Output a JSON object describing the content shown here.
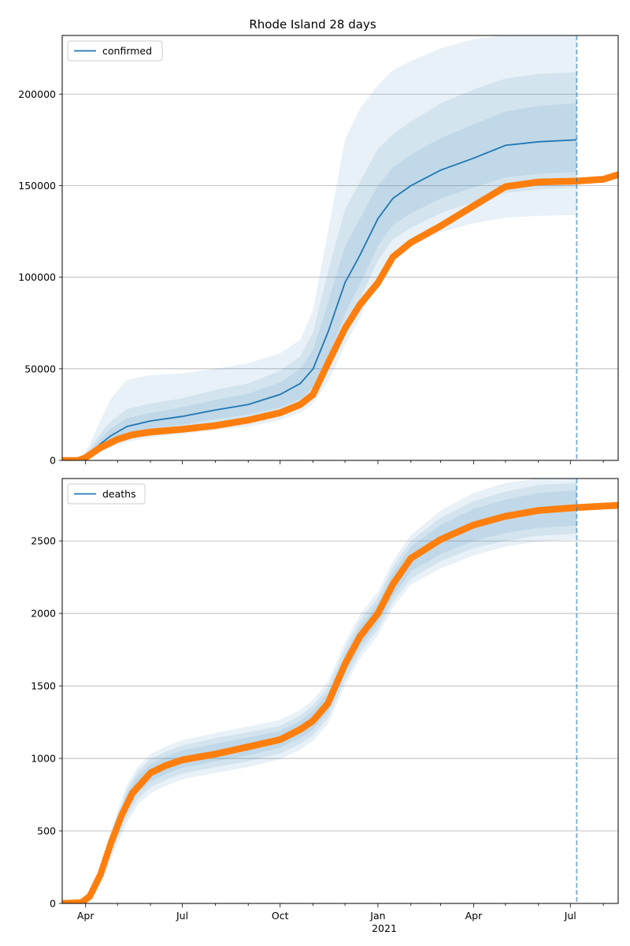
{
  "figure": {
    "title": "Rhode Island 28 days"
  },
  "colors": {
    "model": "#1f77b4",
    "observed": "#ff7f0e",
    "band": "#1f77b4",
    "grid": "#b0b0b0",
    "axis": "#000000"
  },
  "x_axis": {
    "tick_labels": [
      "Apr",
      "Jul",
      "Oct",
      "Jan",
      "Apr",
      "Jul"
    ],
    "secondary_label": "2021",
    "range": [
      "2020-03-10",
      "2021-08-15"
    ]
  },
  "chart_data": [
    {
      "type": "line",
      "panel": "top",
      "title": "Rhode Island 28 days",
      "legend": "confirmed",
      "legend_position": "top-left",
      "grid": "horizontal",
      "ylim": [
        0,
        232000
      ],
      "yticks": [
        "0",
        "50000",
        "100000",
        "150000",
        "200000"
      ],
      "forecast_marker_date": "2021-07-07",
      "model": {
        "name": "confirmed",
        "x": [
          "2020-03-10",
          "2020-03-27",
          "2020-04-05",
          "2020-04-15",
          "2020-04-25",
          "2020-05-10",
          "2020-06-01",
          "2020-07-01",
          "2020-08-01",
          "2020-09-01",
          "2020-10-01",
          "2020-10-20",
          "2020-11-01",
          "2020-11-15",
          "2020-12-01",
          "2020-12-15",
          "2021-01-01",
          "2021-01-15",
          "2021-02-01",
          "2021-03-01",
          "2021-04-01",
          "2021-05-01",
          "2021-06-01",
          "2021-07-07"
        ],
        "median": [
          0,
          0,
          4000,
          9000,
          13500,
          18500,
          21500,
          24000,
          27500,
          30500,
          36000,
          42000,
          50000,
          70000,
          97000,
          112000,
          132000,
          143000,
          150000,
          158500,
          165000,
          172000,
          174000,
          175000
        ],
        "band_inner": {
          "low": [
            0,
            0,
            3000,
            6500,
            10000,
            14500,
            17500,
            19500,
            22500,
            25000,
            29000,
            33500,
            40000,
            56000,
            80000,
            96000,
            117000,
            128500,
            135000,
            143000,
            149000,
            154500,
            156500,
            157500
          ],
          "high": [
            0,
            0,
            5000,
            11500,
            17500,
            23000,
            26000,
            29000,
            33000,
            36500,
            42500,
            50000,
            60500,
            86000,
            117000,
            132000,
            150000,
            160000,
            167000,
            176000,
            183500,
            190500,
            193500,
            195000
          ]
        },
        "band_mid": {
          "low": [
            0,
            0,
            2500,
            5500,
            8500,
            12500,
            15000,
            17000,
            19500,
            22000,
            25500,
            30000,
            36000,
            50000,
            72000,
            88000,
            109000,
            120500,
            127000,
            135000,
            141000,
            146000,
            148000,
            149000
          ],
          "high": [
            0,
            0,
            6500,
            14500,
            21500,
            28000,
            31000,
            34000,
            38500,
            42000,
            49000,
            57000,
            70000,
            103000,
            137000,
            152000,
            170000,
            178000,
            185000,
            195000,
            202500,
            208500,
            211000,
            212000
          ]
        },
        "band_outer": {
          "low": [
            0,
            0,
            2000,
            4500,
            7000,
            10000,
            12500,
            14500,
            16500,
            18500,
            22000,
            26000,
            31000,
            43000,
            63000,
            78000,
            98000,
            110000,
            117000,
            124500,
            129500,
            132500,
            133500,
            134000
          ],
          "high": [
            0,
            0,
            9000,
            22000,
            34000,
            44000,
            46500,
            47500,
            50000,
            53000,
            58500,
            66000,
            82000,
            125000,
            175000,
            192000,
            205000,
            213000,
            218000,
            225000,
            230000,
            232000,
            232000,
            232000
          ]
        }
      },
      "observed": {
        "x": [
          "2020-03-10",
          "2020-03-25",
          "2020-04-01",
          "2020-04-15",
          "2020-05-01",
          "2020-05-15",
          "2020-06-01",
          "2020-07-01",
          "2020-08-01",
          "2020-09-01",
          "2020-10-01",
          "2020-10-20",
          "2020-11-01",
          "2020-11-15",
          "2020-12-01",
          "2020-12-15",
          "2021-01-01",
          "2021-01-15",
          "2021-02-01",
          "2021-03-01",
          "2021-04-01",
          "2021-05-01",
          "2021-06-01",
          "2021-07-07",
          "2021-08-01",
          "2021-08-15"
        ],
        "values": [
          0,
          0,
          1500,
          7000,
          11500,
          14000,
          15500,
          17000,
          19000,
          22000,
          26000,
          30500,
          36000,
          53000,
          72000,
          85000,
          97000,
          111000,
          119000,
          128000,
          139000,
          149500,
          152000,
          152500,
          153500,
          156000
        ]
      }
    },
    {
      "type": "line",
      "panel": "bottom",
      "legend": "deaths",
      "legend_position": "top-left",
      "grid": "horizontal",
      "ylim": [
        0,
        2930
      ],
      "yticks": [
        "0",
        "500",
        "1000",
        "1500",
        "2000",
        "2500"
      ],
      "forecast_marker_date": "2021-07-07",
      "model": {
        "name": "deaths",
        "x": [
          "2020-03-10",
          "2020-03-30",
          "2020-04-10",
          "2020-04-20",
          "2020-05-01",
          "2020-05-10",
          "2020-05-20",
          "2020-06-01",
          "2020-06-15",
          "2020-07-01",
          "2020-08-01",
          "2020-09-01",
          "2020-10-01",
          "2020-10-20",
          "2020-11-01",
          "2020-11-15",
          "2020-12-01",
          "2020-12-15",
          "2021-01-01",
          "2021-01-15",
          "2021-02-01",
          "2021-03-01",
          "2021-04-01",
          "2021-05-01",
          "2021-06-01",
          "2021-07-07"
        ],
        "median": [
          0,
          5,
          100,
          300,
          530,
          700,
          820,
          900,
          950,
          995,
          1040,
          1080,
          1130,
          1195,
          1260,
          1380,
          1650,
          1840,
          2000,
          2200,
          2380,
          2510,
          2610,
          2670,
          2710,
          2730
        ],
        "band_inner": {
          "low": [
            0,
            4,
            85,
            260,
            480,
            640,
            760,
            840,
            890,
            935,
            980,
            1020,
            1075,
            1140,
            1200,
            1320,
            1580,
            1770,
            1930,
            2120,
            2290,
            2410,
            2500,
            2555,
            2590,
            2605
          ],
          "high": [
            0,
            6,
            115,
            340,
            580,
            760,
            880,
            960,
            1010,
            1055,
            1100,
            1145,
            1190,
            1260,
            1330,
            1450,
            1720,
            1910,
            2070,
            2280,
            2460,
            2610,
            2720,
            2785,
            2830,
            2850
          ]
        },
        "band_mid": {
          "low": [
            0,
            3,
            75,
            235,
            450,
            600,
            720,
            800,
            850,
            895,
            940,
            980,
            1035,
            1100,
            1160,
            1280,
            1540,
            1730,
            1890,
            2080,
            2240,
            2360,
            2450,
            2500,
            2535,
            2550
          ],
          "high": [
            0,
            7,
            125,
            365,
            610,
            790,
            910,
            995,
            1045,
            1090,
            1140,
            1180,
            1225,
            1295,
            1365,
            1490,
            1760,
            1950,
            2110,
            2320,
            2500,
            2660,
            2775,
            2840,
            2885,
            2900
          ]
        },
        "band_outer": {
          "low": [
            0,
            2,
            60,
            210,
            410,
            560,
            680,
            760,
            810,
            855,
            900,
            940,
            995,
            1060,
            1120,
            1240,
            1500,
            1690,
            1850,
            2040,
            2200,
            2310,
            2400,
            2460,
            2495,
            2510
          ],
          "high": [
            0,
            8,
            140,
            390,
            640,
            820,
            940,
            1030,
            1080,
            1125,
            1175,
            1220,
            1265,
            1335,
            1405,
            1530,
            1800,
            1990,
            2150,
            2360,
            2540,
            2710,
            2830,
            2900,
            2930,
            2930
          ]
        }
      },
      "observed": {
        "x": [
          "2020-03-10",
          "2020-03-28",
          "2020-04-05",
          "2020-04-15",
          "2020-04-25",
          "2020-05-05",
          "2020-05-15",
          "2020-06-01",
          "2020-06-15",
          "2020-07-01",
          "2020-08-01",
          "2020-09-01",
          "2020-10-01",
          "2020-10-20",
          "2020-11-01",
          "2020-11-15",
          "2020-12-01",
          "2020-12-15",
          "2021-01-01",
          "2021-01-15",
          "2021-02-01",
          "2021-03-01",
          "2021-04-01",
          "2021-05-01",
          "2021-06-01",
          "2021-07-07",
          "2021-08-01",
          "2021-08-15"
        ],
        "values": [
          0,
          5,
          50,
          200,
          420,
          610,
          760,
          900,
          950,
          990,
          1030,
          1080,
          1130,
          1200,
          1260,
          1380,
          1650,
          1840,
          2000,
          2200,
          2380,
          2510,
          2610,
          2670,
          2710,
          2730,
          2740,
          2745
        ]
      }
    }
  ]
}
